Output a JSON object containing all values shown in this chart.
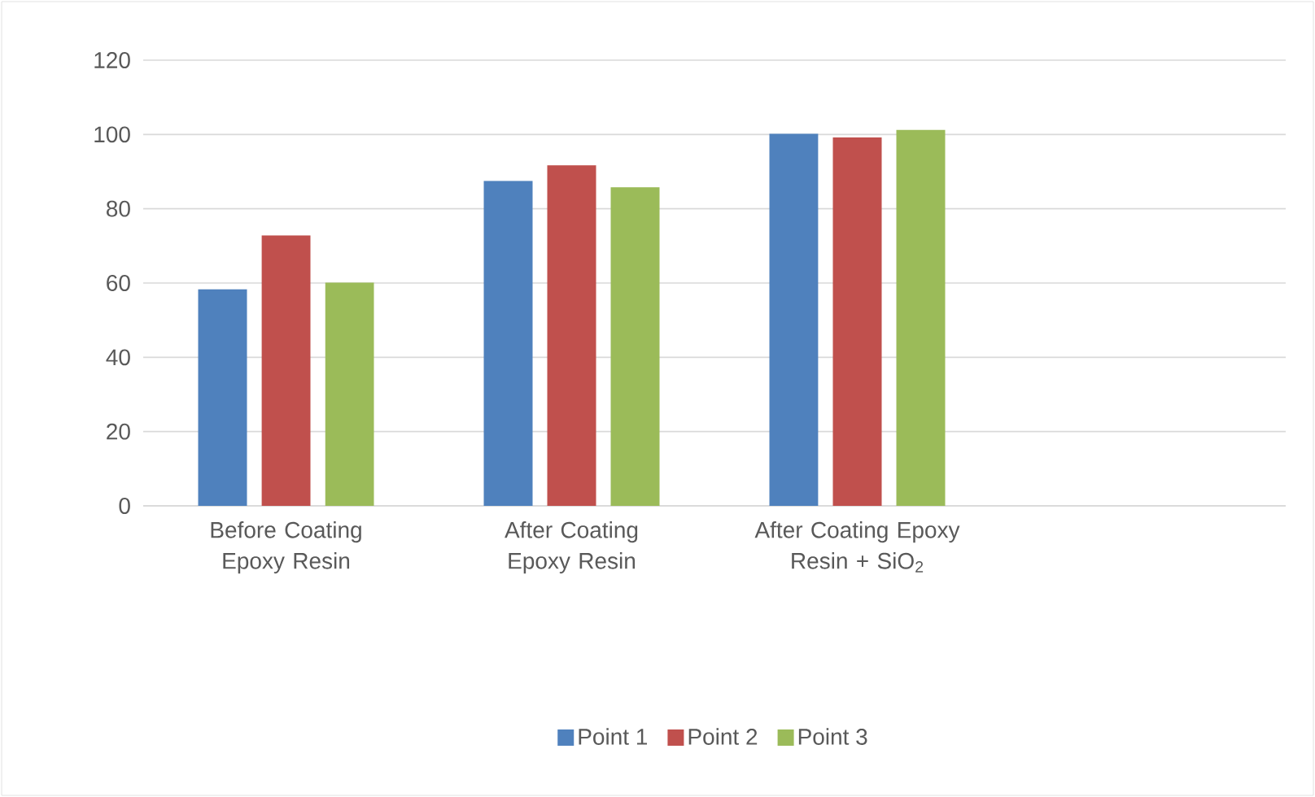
{
  "chart_data": {
    "type": "bar",
    "categories": [
      "Before Coating Epoxy Resin",
      "After Coating Epoxy Resin",
      "After Coating Epoxy Resin + SiO$_{2}$",
      null
    ],
    "series": [
      {
        "name": "Point 1",
        "color": "#4f81bd",
        "values": [
          58.3,
          87.5,
          100.2,
          null
        ]
      },
      {
        "name": "Point 2",
        "color": "#c0504d",
        "values": [
          72.8,
          91.7,
          99.2,
          null
        ]
      },
      {
        "name": "Point 3",
        "color": "#9bbb59",
        "values": [
          60.1,
          85.8,
          101.2,
          null
        ]
      }
    ],
    "ylim": [
      0,
      120
    ],
    "yticks": [
      0,
      20,
      40,
      60,
      80,
      100,
      120
    ],
    "grid": "y",
    "legend": "bottom"
  }
}
